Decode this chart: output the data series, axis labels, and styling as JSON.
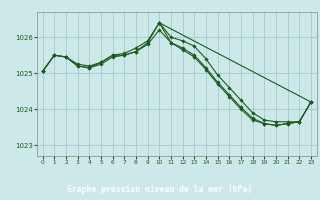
{
  "title": "Graphe pression niveau de la mer (hPa)",
  "bg_color": "#cce8e8",
  "plot_bg": "#cce8e8",
  "grid_color": "#aacece",
  "line_color": "#1a5c1a",
  "label_bg": "#1a5c1a",
  "label_fg": "#ffffff",
  "xlim": [
    -0.5,
    23.5
  ],
  "ylim": [
    1022.7,
    1026.7
  ],
  "yticks": [
    1023,
    1024,
    1025,
    1026
  ],
  "xticks": [
    0,
    1,
    2,
    3,
    4,
    5,
    6,
    7,
    8,
    9,
    10,
    11,
    12,
    13,
    14,
    15,
    16,
    17,
    18,
    19,
    20,
    21,
    22,
    23
  ],
  "series1_x": [
    0,
    1,
    2,
    3,
    4,
    5,
    6,
    7,
    8,
    9,
    10,
    11,
    12,
    13,
    14,
    15,
    16,
    17,
    18,
    19,
    20,
    21,
    22,
    23
  ],
  "series1_y": [
    1025.05,
    1025.5,
    1025.45,
    1025.25,
    1025.2,
    1025.3,
    1025.5,
    1025.55,
    1025.7,
    1025.9,
    1026.4,
    1026.0,
    1025.9,
    1025.75,
    1025.4,
    1024.95,
    1024.6,
    1024.25,
    1023.9,
    1023.7,
    1023.65,
    1023.65,
    1023.65,
    1024.2
  ],
  "series2_x": [
    0,
    1,
    2,
    3,
    4,
    5,
    6,
    7,
    8,
    9,
    10,
    11,
    12,
    13,
    14,
    15,
    16,
    17,
    18,
    19,
    20,
    21,
    22,
    23
  ],
  "series2_y": [
    1025.05,
    1025.5,
    1025.45,
    1025.2,
    1025.15,
    1025.25,
    1025.45,
    1025.5,
    1025.6,
    1025.8,
    1026.2,
    1025.85,
    1025.65,
    1025.45,
    1025.1,
    1024.7,
    1024.35,
    1024.0,
    1023.7,
    1023.6,
    1023.55,
    1023.6,
    1023.65,
    1024.2
  ],
  "series3_x": [
    0,
    1,
    2,
    3,
    4,
    5,
    6,
    7,
    8,
    9,
    10,
    23,
    22,
    21,
    20,
    19,
    18,
    17,
    16,
    15,
    14,
    13,
    12,
    11,
    10
  ],
  "series3_y": [
    1025.05,
    1025.5,
    1025.45,
    1025.2,
    1025.15,
    1025.3,
    1025.5,
    1025.5,
    1025.6,
    1025.85,
    1026.4,
    1024.2,
    1023.65,
    1023.6,
    1023.55,
    1023.6,
    1023.75,
    1024.05,
    1024.4,
    1024.75,
    1025.15,
    1025.5,
    1025.7,
    1025.85,
    1026.4
  ]
}
